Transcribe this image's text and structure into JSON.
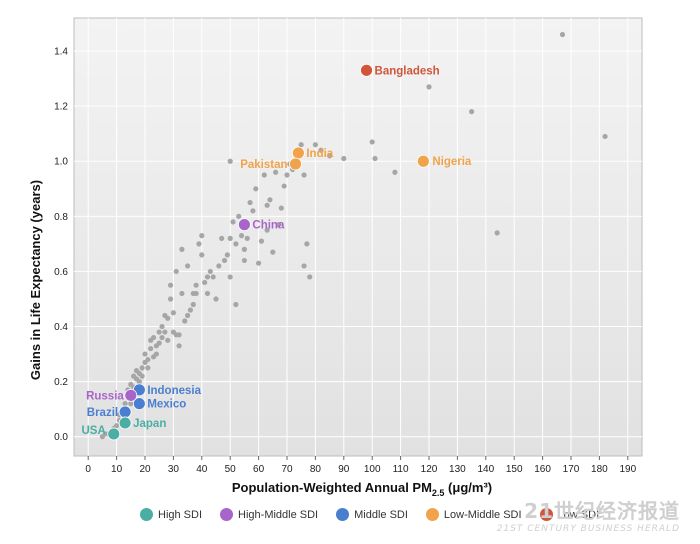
{
  "chart_data": {
    "type": "scatter",
    "title": "",
    "xlabel": "Population-Weighted Annual PM",
    "xlabel_sub": "2.5",
    "xlabel_unit": " (μg/m³)",
    "ylabel": "Gains in Life Expectancy (years)",
    "xlim": [
      -5,
      195
    ],
    "ylim": [
      -0.07,
      1.52
    ],
    "xticks": [
      "0",
      "10",
      "20",
      "30",
      "40",
      "50",
      "60",
      "70",
      "80",
      "90",
      "100",
      "110",
      "120",
      "130",
      "140",
      "150",
      "160",
      "170",
      "180",
      "190"
    ],
    "yticks": [
      "0.0",
      "0.2",
      "0.4",
      "0.6",
      "0.8",
      "1.0",
      "1.2",
      "1.4"
    ],
    "grid": true,
    "highlighted": [
      {
        "label": "Bangladesh",
        "x": 98,
        "y": 1.33,
        "color": "#d0553a",
        "group": "Low SDI"
      },
      {
        "label": "India",
        "x": 74,
        "y": 1.03,
        "color": "#f0a34a",
        "group": "Low-Middle SDI"
      },
      {
        "label": "Pakistan",
        "x": 73,
        "y": 0.99,
        "color": "#f0a34a",
        "group": "Low-Middle SDI"
      },
      {
        "label": "Nigeria",
        "x": 118,
        "y": 1.0,
        "color": "#f0a34a",
        "group": "Low-Middle SDI"
      },
      {
        "label": "China",
        "x": 55,
        "y": 0.77,
        "color": "#a865c9",
        "group": "High-Middle SDI"
      },
      {
        "label": "Indonesia",
        "x": 18,
        "y": 0.17,
        "color": "#4a7fd0",
        "group": "Middle SDI"
      },
      {
        "label": "Mexico",
        "x": 18,
        "y": 0.12,
        "color": "#4a7fd0",
        "group": "Middle SDI"
      },
      {
        "label": "Russia",
        "x": 15,
        "y": 0.15,
        "color": "#a865c9",
        "group": "High-Middle SDI"
      },
      {
        "label": "Brazil",
        "x": 13,
        "y": 0.09,
        "color": "#4a7fd0",
        "group": "Middle SDI"
      },
      {
        "label": "Japan",
        "x": 13,
        "y": 0.05,
        "color": "#4aaea4",
        "group": "High SDI"
      },
      {
        "label": "USA",
        "x": 9,
        "y": 0.01,
        "color": "#4aaea4",
        "group": "High SDI"
      }
    ],
    "background_points": [
      [
        5,
        0
      ],
      [
        6,
        0.01
      ],
      [
        7,
        0.01
      ],
      [
        8,
        0.02
      ],
      [
        9,
        0.03
      ],
      [
        10,
        0.02
      ],
      [
        10,
        0.04
      ],
      [
        11,
        0.06
      ],
      [
        11,
        0.08
      ],
      [
        12,
        0.05
      ],
      [
        12,
        0.1
      ],
      [
        13,
        0.12
      ],
      [
        14,
        0.14
      ],
      [
        14,
        0.17
      ],
      [
        15,
        0.12
      ],
      [
        15,
        0.19
      ],
      [
        16,
        0.18
      ],
      [
        16,
        0.22
      ],
      [
        17,
        0.21
      ],
      [
        17,
        0.24
      ],
      [
        18,
        0.2
      ],
      [
        18,
        0.23
      ],
      [
        19,
        0.25
      ],
      [
        19,
        0.22
      ],
      [
        20,
        0.27
      ],
      [
        20,
        0.3
      ],
      [
        21,
        0.25
      ],
      [
        21,
        0.28
      ],
      [
        22,
        0.32
      ],
      [
        22,
        0.35
      ],
      [
        23,
        0.29
      ],
      [
        23,
        0.36
      ],
      [
        24,
        0.3
      ],
      [
        24,
        0.33
      ],
      [
        25,
        0.34
      ],
      [
        25,
        0.38
      ],
      [
        26,
        0.36
      ],
      [
        26,
        0.4
      ],
      [
        27,
        0.38
      ],
      [
        28,
        0.43
      ],
      [
        28,
        0.35
      ],
      [
        29,
        0.5
      ],
      [
        29,
        0.55
      ],
      [
        30,
        0.38
      ],
      [
        30,
        0.45
      ],
      [
        31,
        0.37
      ],
      [
        31,
        0.6
      ],
      [
        32,
        0.37
      ],
      [
        32,
        0.33
      ],
      [
        33,
        0.68
      ],
      [
        34,
        0.42
      ],
      [
        35,
        0.44
      ],
      [
        35,
        0.62
      ],
      [
        36,
        0.46
      ],
      [
        37,
        0.48
      ],
      [
        37,
        0.52
      ],
      [
        38,
        0.52
      ],
      [
        38,
        0.55
      ],
      [
        39,
        0.7
      ],
      [
        40,
        0.73
      ],
      [
        41,
        0.56
      ],
      [
        42,
        0.52
      ],
      [
        42,
        0.58
      ],
      [
        43,
        0.6
      ],
      [
        44,
        0.58
      ],
      [
        45,
        0.5
      ],
      [
        46,
        0.62
      ],
      [
        47,
        0.72
      ],
      [
        48,
        0.64
      ],
      [
        49,
        0.66
      ],
      [
        50,
        0.58
      ],
      [
        50,
        0.72
      ],
      [
        51,
        0.78
      ],
      [
        52,
        0.7
      ],
      [
        52,
        0.48
      ],
      [
        53,
        0.8
      ],
      [
        54,
        0.73
      ],
      [
        55,
        0.68
      ],
      [
        55,
        0.64
      ],
      [
        56,
        0.72
      ],
      [
        57,
        0.85
      ],
      [
        58,
        0.82
      ],
      [
        59,
        0.9
      ],
      [
        60,
        0.63
      ],
      [
        61,
        0.71
      ],
      [
        62,
        0.95
      ],
      [
        63,
        0.75
      ],
      [
        63,
        0.84
      ],
      [
        64,
        0.86
      ],
      [
        65,
        0.67
      ],
      [
        66,
        0.96
      ],
      [
        67,
        0.77
      ],
      [
        68,
        0.83
      ],
      [
        69,
        0.91
      ],
      [
        70,
        0.95
      ],
      [
        71,
        0.99
      ],
      [
        72,
        0.97
      ],
      [
        75,
        1.06
      ],
      [
        76,
        0.95
      ],
      [
        76,
        0.62
      ],
      [
        77,
        0.7
      ],
      [
        78,
        0.58
      ],
      [
        80,
        1.06
      ],
      [
        82,
        1.04
      ],
      [
        85,
        1.02
      ],
      [
        90,
        1.01
      ],
      [
        100,
        1.07
      ],
      [
        101,
        1.01
      ],
      [
        108,
        0.96
      ],
      [
        120,
        1.27
      ],
      [
        135,
        1.18
      ],
      [
        144,
        0.74
      ],
      [
        167,
        1.46
      ],
      [
        182,
        1.09
      ],
      [
        50,
        1.0
      ],
      [
        40,
        0.66
      ],
      [
        33,
        0.52
      ],
      [
        27,
        0.44
      ]
    ]
  },
  "labels": {
    "Bangladesh": "Bangladesh",
    "India": "India",
    "Pakistan": "Pakistan",
    "Nigeria": "Nigeria",
    "China": "China",
    "Indonesia": "Indonesia",
    "Mexico": "Mexico",
    "Russia": "Russia",
    "Brazil": "Brazil",
    "Japan": "Japan",
    "USA": "USA"
  },
  "legend": [
    {
      "label": "High SDI",
      "color": "#4aaea4"
    },
    {
      "label": "High-Middle SDI",
      "color": "#a865c9"
    },
    {
      "label": "Middle SDI",
      "color": "#4a7fd0"
    },
    {
      "label": "Low-Middle SDI",
      "color": "#f0a34a"
    },
    {
      "label": "Low SDI",
      "color": "#d0553a"
    }
  ],
  "watermark": {
    "main": "21世纪经济报道",
    "sub": "21ST CENTURY BUSINESS HERALD"
  }
}
